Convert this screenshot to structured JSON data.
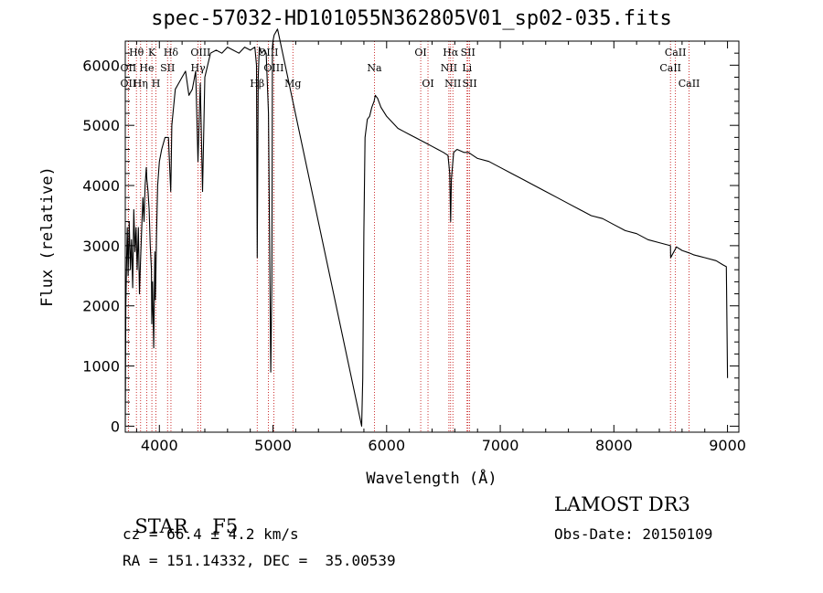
{
  "chart_data": {
    "type": "line",
    "title": "spec-57032-HD101055N362805V01_sp02-035.fits",
    "xlabel": "Wavelength (Å)",
    "ylabel": "Flux (relative)",
    "xlim": [
      3700,
      9100
    ],
    "ylim": [
      -100,
      6400
    ],
    "xticks": [
      "4000",
      "5000",
      "6000",
      "7000",
      "8000",
      "9000"
    ],
    "xtick_values": [
      4000,
      5000,
      6000,
      7000,
      8000,
      9000
    ],
    "yticks": [
      "0",
      "1000",
      "2000",
      "3000",
      "4000",
      "5000",
      "6000"
    ],
    "ytick_values": [
      0,
      1000,
      2000,
      3000,
      4000,
      5000,
      6000
    ],
    "series": [
      {
        "name": "spectrum",
        "x": [
          3700,
          3705,
          3712,
          3718,
          3725,
          3735,
          3745,
          3755,
          3765,
          3775,
          3785,
          3795,
          3805,
          3815,
          3825,
          3835,
          3845,
          3855,
          3865,
          3875,
          3885,
          3890,
          3900,
          3910,
          3920,
          3930,
          3933,
          3940,
          3950,
          3960,
          3965,
          3968,
          3975,
          3985,
          4000,
          4020,
          4050,
          4080,
          4100,
          4102,
          4110,
          4140,
          4170,
          4200,
          4230,
          4260,
          4290,
          4320,
          4340,
          4360,
          4380,
          4400,
          4450,
          4500,
          4550,
          4600,
          4650,
          4700,
          4750,
          4800,
          4840,
          4855,
          4861,
          4870,
          4880,
          4900,
          4920,
          4940,
          4960,
          4980,
          4990,
          4995,
          5000,
          5010,
          5040,
          5780,
          5790,
          5800,
          5810,
          5830,
          5850,
          5870,
          5890,
          5900,
          5920,
          5950,
          6000,
          6050,
          6100,
          6150,
          6200,
          6250,
          6300,
          6350,
          6400,
          6450,
          6500,
          6540,
          6555,
          6563,
          6570,
          6590,
          6620,
          6680,
          6720,
          6800,
          6900,
          7000,
          7100,
          7200,
          7300,
          7400,
          7500,
          7600,
          7700,
          7800,
          7900,
          8000,
          8100,
          8200,
          8300,
          8400,
          8498,
          8500,
          8542,
          8550,
          8600,
          8662,
          8700,
          8800,
          8900,
          8960,
          8990,
          9000
        ],
        "values": [
          0,
          2000,
          2800,
          3300,
          2500,
          3400,
          2600,
          3100,
          2300,
          3600,
          2900,
          3300,
          2600,
          3300,
          2200,
          2800,
          3300,
          3800,
          3400,
          4000,
          4300,
          4100,
          3900,
          3600,
          3000,
          2600,
          1700,
          2400,
          1300,
          2900,
          2100,
          2400,
          3200,
          4000,
          4400,
          4600,
          4800,
          4800,
          3900,
          4100,
          5000,
          5600,
          5700,
          5800,
          5900,
          5500,
          5600,
          5900,
          4400,
          5700,
          3900,
          5800,
          6200,
          6250,
          6200,
          6300,
          6250,
          6200,
          6300,
          6250,
          6300,
          6000,
          2800,
          5800,
          6300,
          6200,
          6250,
          6200,
          5200,
          900,
          2400,
          6300,
          6400,
          6500,
          6600,
          0,
          800,
          3200,
          4800,
          5100,
          5150,
          5300,
          5400,
          5500,
          5450,
          5300,
          5150,
          5050,
          4950,
          4900,
          4850,
          4800,
          4750,
          4700,
          4650,
          4600,
          4550,
          4500,
          4200,
          3400,
          4100,
          4550,
          4600,
          4550,
          4550,
          4450,
          4400,
          4300,
          4200,
          4100,
          4000,
          3900,
          3800,
          3700,
          3600,
          3500,
          3450,
          3350,
          3250,
          3200,
          3100,
          3050,
          3000,
          2800,
          2950,
          2980,
          2920,
          2880,
          2850,
          2800,
          2750,
          2680,
          2650,
          800
        ]
      }
    ],
    "line_markers": [
      {
        "label": "Hθ",
        "x": 3798,
        "row": 1
      },
      {
        "label": "K",
        "x": 3934,
        "row": 1
      },
      {
        "label": "Hδ",
        "x": 4102,
        "row": 1
      },
      {
        "label": "OIII",
        "x": 4363,
        "row": 1
      },
      {
        "label": "OIII",
        "x": 4959,
        "row": 1
      },
      {
        "label": "OI",
        "x": 6300,
        "row": 1
      },
      {
        "label": "Hα",
        "x": 6563,
        "row": 1
      },
      {
        "label": "SII",
        "x": 6716,
        "row": 1
      },
      {
        "label": "CaII",
        "x": 8542,
        "row": 1
      },
      {
        "label": "OII",
        "x": 3727,
        "row": 2
      },
      {
        "label": "He",
        "x": 3889,
        "row": 2
      },
      {
        "label": "SII",
        "x": 4072,
        "row": 2
      },
      {
        "label": "Hγ",
        "x": 4340,
        "row": 2
      },
      {
        "label": "OIII",
        "x": 5007,
        "row": 2
      },
      {
        "label": "Na",
        "x": 5893,
        "row": 2
      },
      {
        "label": "NII",
        "x": 6548,
        "row": 2
      },
      {
        "label": "Li",
        "x": 6708,
        "row": 2
      },
      {
        "label": "CaII",
        "x": 8498,
        "row": 2
      },
      {
        "label": "OII",
        "x": 3727,
        "row": 3
      },
      {
        "label": "Hη",
        "x": 3835,
        "row": 3
      },
      {
        "label": "H",
        "x": 3970,
        "row": 3
      },
      {
        "label": "Hβ",
        "x": 4861,
        "row": 3
      },
      {
        "label": "Mg",
        "x": 5175,
        "row": 3
      },
      {
        "label": "OI",
        "x": 6364,
        "row": 3
      },
      {
        "label": "NII",
        "x": 6583,
        "row": 3
      },
      {
        "label": "SII",
        "x": 6731,
        "row": 3
      },
      {
        "label": "CaII",
        "x": 8662,
        "row": 3
      }
    ]
  },
  "info": {
    "object_class": "STAR",
    "subclass": "F5",
    "survey": "LAMOST DR3",
    "redshift_line": "cz = 66.4 ± 4.2 km/s",
    "obs_date_line": "Obs-Date: 20150109",
    "coords_line": "RA = 151.14332, DEC =  35.00539"
  }
}
